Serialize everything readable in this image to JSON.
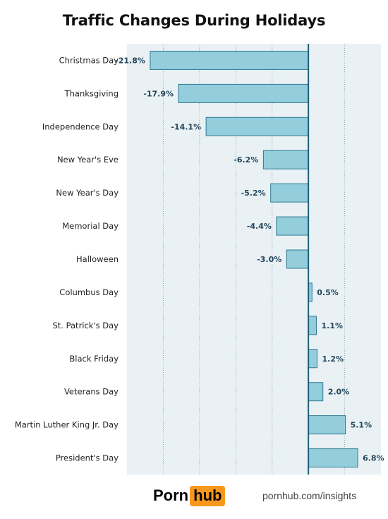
{
  "chart_data": {
    "type": "bar",
    "orientation": "horizontal",
    "title": "Traffic Changes During Holidays",
    "categories": [
      "Christmas Day",
      "Thanksgiving",
      "Independence Day",
      "New Year's Eve",
      "New Year's Day",
      "Memorial Day",
      "Halloween",
      "Columbus Day",
      "St. Patrick's Day",
      "Black Friday",
      "Veterans Day",
      "Martin Luther King Jr. Day",
      "President's Day"
    ],
    "values": [
      -21.8,
      -17.9,
      -14.1,
      -6.2,
      -5.2,
      -4.4,
      -3.0,
      0.5,
      1.1,
      1.2,
      2.0,
      5.1,
      6.8
    ],
    "value_labels": [
      "-21.8%",
      "-17.9%",
      "-14.1%",
      "-6.2%",
      "-5.2%",
      "-4.4%",
      "-3.0%",
      "0.5%",
      "1.1%",
      "1.2%",
      "2.0%",
      "5.1%",
      "6.8%"
    ],
    "xlim": [
      -25,
      10
    ],
    "gridline_step": 5,
    "grid": true,
    "colors": {
      "bar_fill": "#94cddb",
      "bar_stroke": "#2f7a92",
      "plot_background": "#e9f1f4",
      "zero_line": "#1f5d74",
      "gridline": "#9aa7ad"
    }
  },
  "footer": {
    "logo_part1": "Porn",
    "logo_part2": "hub",
    "logo_accent": "#f7971d",
    "url": "pornhub.com/insights"
  }
}
